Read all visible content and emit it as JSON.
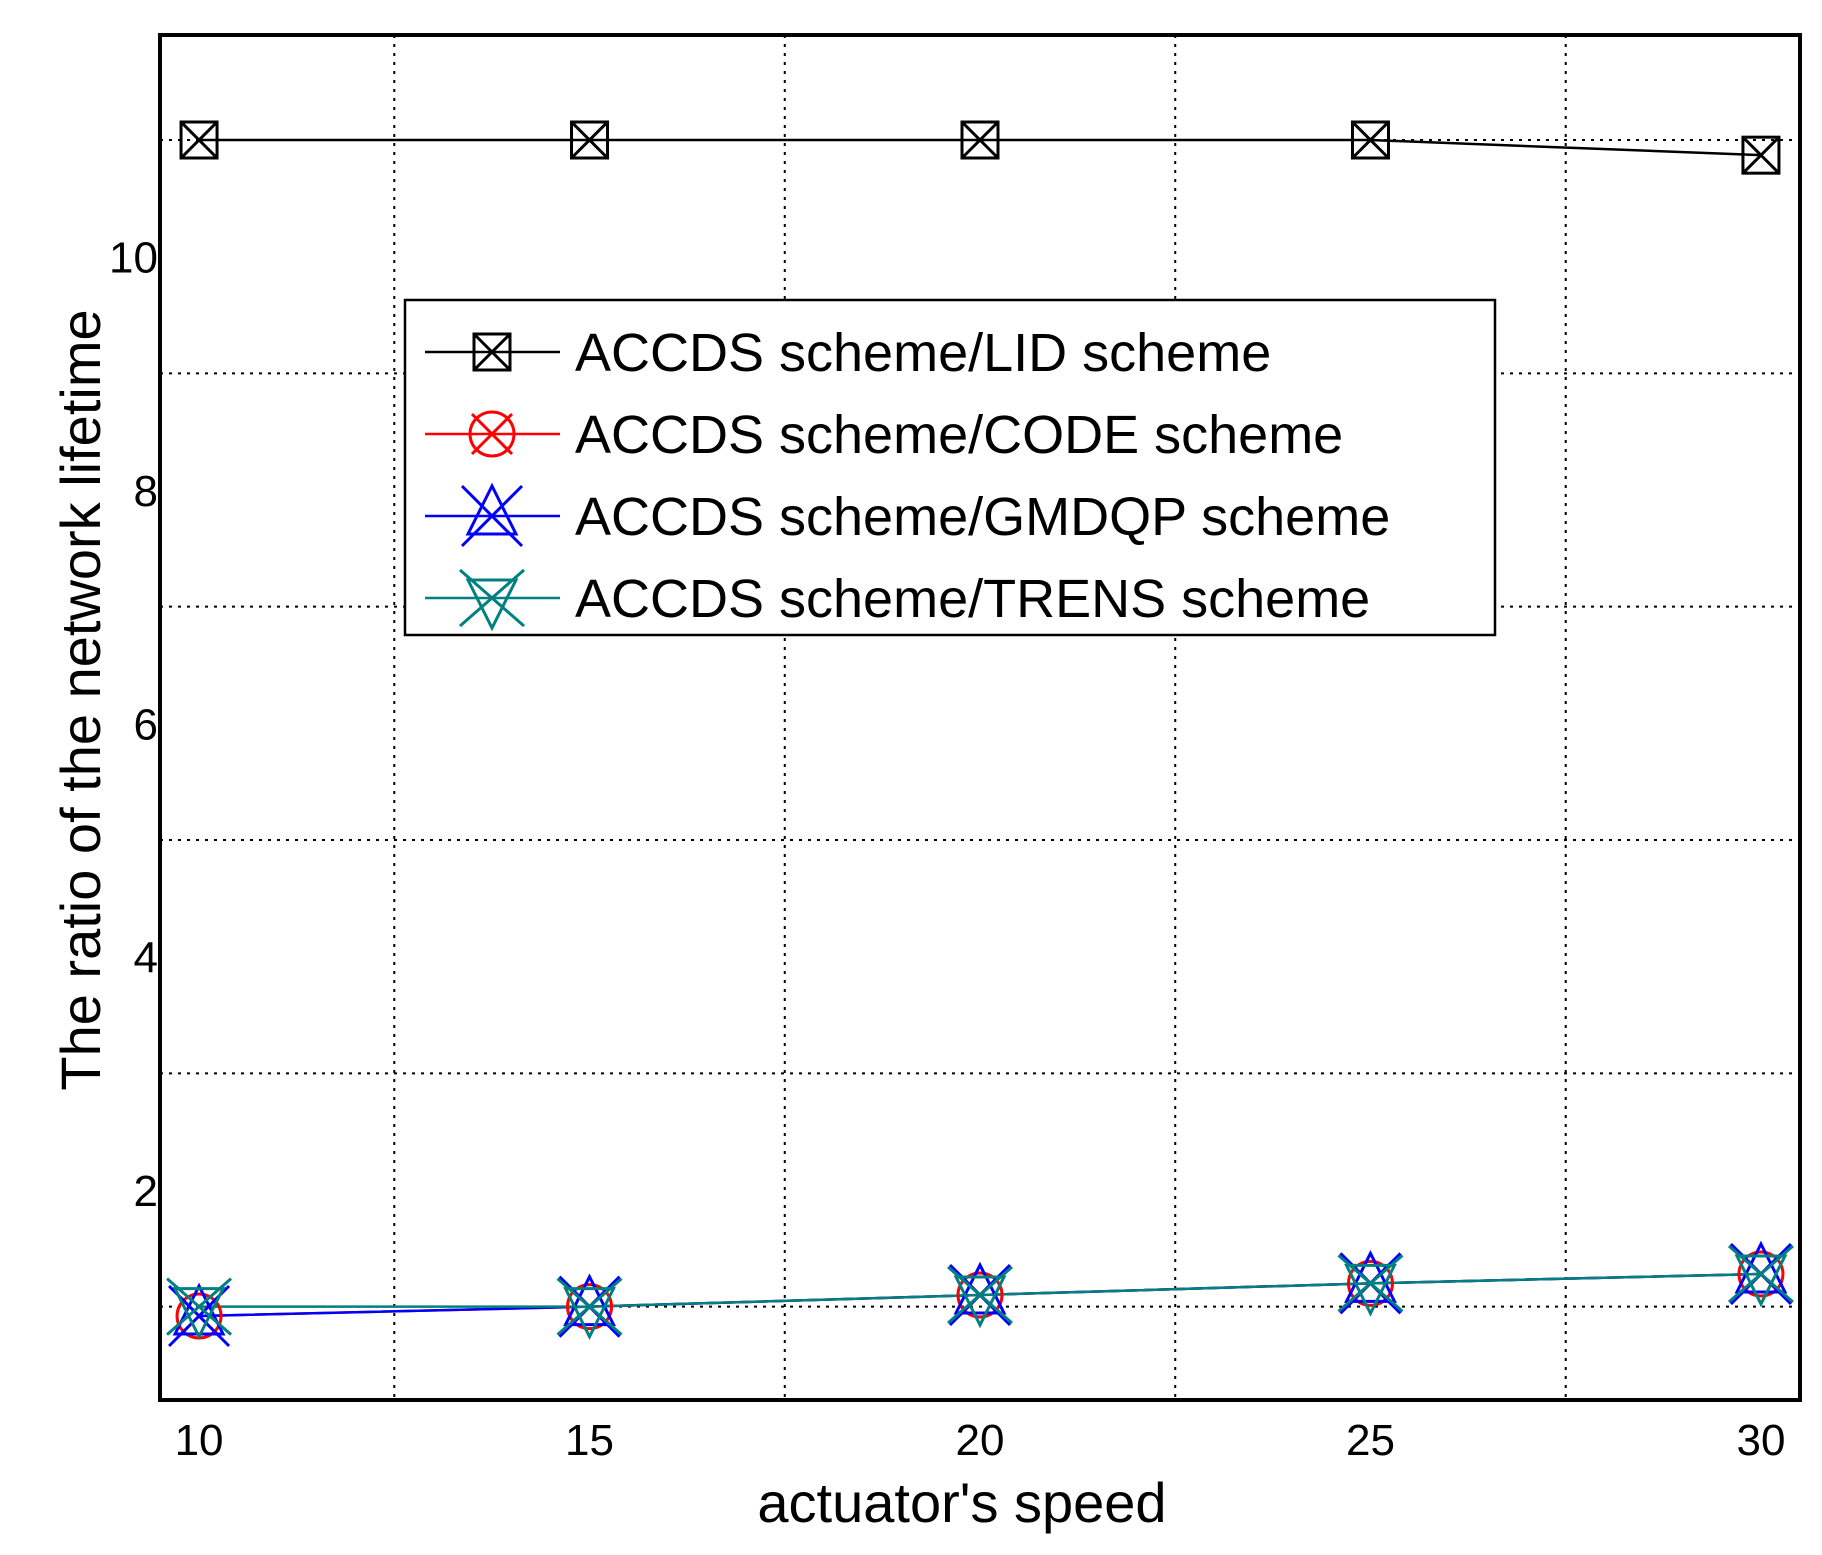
{
  "chart_data": {
    "type": "line",
    "title": "",
    "xlabel": "actuator's speed",
    "ylabel": "The ratio of the network lifetime",
    "x": [
      10,
      15,
      20,
      25,
      30
    ],
    "xlim": [
      9.5,
      30.5
    ],
    "ylim": [
      0.2,
      11.9
    ],
    "x_ticks": [
      10,
      15,
      20,
      25,
      30
    ],
    "y_ticks": [
      2,
      4,
      6,
      8,
      10
    ],
    "x_grid": [
      12.5,
      17.5,
      22.5,
      27.5
    ],
    "y_grid": [
      1,
      3,
      5,
      7,
      9,
      11
    ],
    "grid": true,
    "legend_position": "upper-center",
    "series": [
      {
        "name": "ACCDS scheme/LID scheme",
        "values": [
          11.0,
          11.0,
          11.0,
          11.0,
          10.87
        ],
        "color": "#000000",
        "marker": "boxed-x"
      },
      {
        "name": "ACCDS scheme/CODE scheme",
        "values": [
          0.92,
          1.0,
          1.1,
          1.2,
          1.28
        ],
        "color": "#ff0000",
        "marker": "circle-x"
      },
      {
        "name": "ACCDS scheme/GMDQP scheme",
        "values": [
          0.92,
          1.0,
          1.1,
          1.2,
          1.28
        ],
        "color": "#0000ff",
        "marker": "triangle-up-x"
      },
      {
        "name": "ACCDS scheme/TRENS scheme",
        "values": [
          1.0,
          1.0,
          1.1,
          1.2,
          1.28
        ],
        "color": "#008080",
        "marker": "triangle-down-x"
      }
    ]
  }
}
